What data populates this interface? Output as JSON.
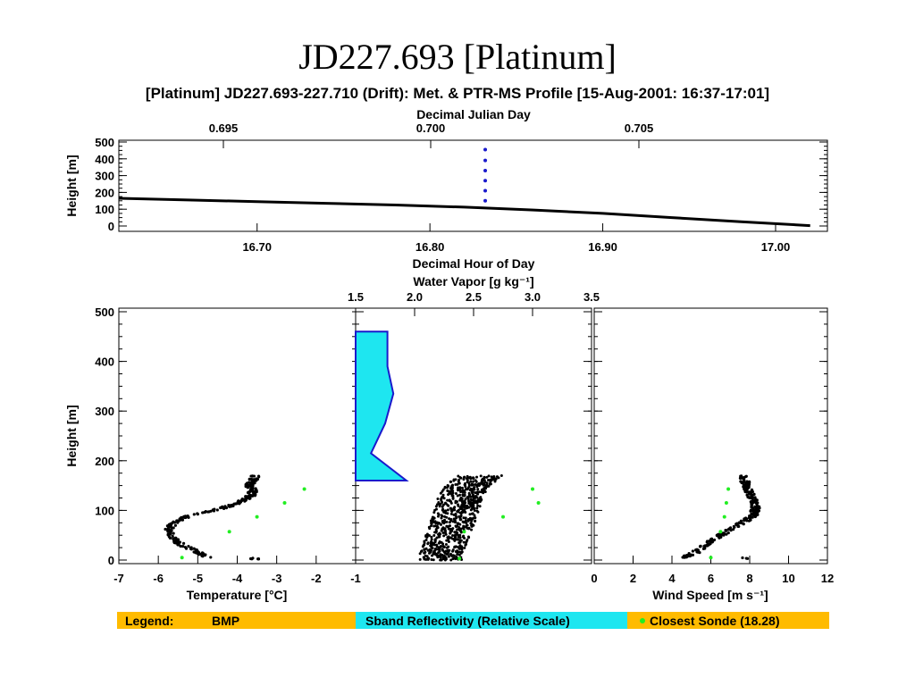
{
  "slide": {
    "title": "JD227.693 [Platinum]",
    "chart_title": "[Platinum] JD227.693-227.710 (Drift): Met. & PTR-MS Profile [15-Aug-2001: 16:37-17:01]"
  },
  "colors": {
    "bmp": "#000000",
    "sonde": "#22ee22",
    "sband_fill": "#1ee6f0",
    "sband_line": "#1a1acc",
    "drift_marker": "#1a1acc",
    "legend_bg": "#ffbb00",
    "legend_sband_bg": "#1ee6f0",
    "legend_sband_text": "#1a1acc"
  },
  "legend": {
    "label": "Legend:",
    "bmp": "BMP",
    "sband": "Sband Reflectivity (Relative Scale)",
    "sonde": "Closest Sonde (18.28)"
  },
  "chart_data": [
    {
      "type": "line",
      "id": "time-height",
      "top_axis_label": "Decimal Julian Day",
      "top_ticks": [
        "0.695",
        "0.700",
        "0.705"
      ],
      "xlabel": "Decimal Hour of Day",
      "x_ticks": [
        "16.70",
        "16.80",
        "16.90",
        "17.00"
      ],
      "xlim": [
        16.62,
        17.03
      ],
      "ylabel": "Height [m]",
      "y_ticks": [
        "0",
        "100",
        "200",
        "300",
        "400",
        "500"
      ],
      "ylim": [
        0,
        500
      ],
      "series": [
        {
          "role": "altitude",
          "x": [
            16.62,
            16.66,
            16.7,
            16.74,
            16.78,
            16.82,
            16.86,
            16.9,
            16.94,
            16.98,
            17.02
          ],
          "y": [
            165,
            155,
            145,
            135,
            125,
            112,
            95,
            75,
            50,
            25,
            2
          ]
        },
        {
          "role": "sband-profile-time",
          "x": [
            16.832,
            16.832,
            16.832,
            16.832,
            16.832,
            16.832
          ],
          "y": [
            150,
            210,
            270,
            330,
            390,
            455
          ]
        }
      ]
    },
    {
      "type": "scatter",
      "id": "temperature-profile",
      "xlabel": "Temperature [°C]",
      "x_ticks": [
        "-7",
        "-6",
        "-5",
        "-4",
        "-3",
        "-2",
        "-1"
      ],
      "xlim": [
        -7,
        -1
      ],
      "ylabel": "Height [m]",
      "y_ticks": [
        "0",
        "100",
        "200",
        "300",
        "400",
        "500"
      ],
      "ylim": [
        0,
        500
      ],
      "bmp_profile": {
        "y": [
          5,
          15,
          30,
          45,
          60,
          75,
          90,
          100,
          110,
          120,
          130,
          140,
          150,
          160,
          170
        ],
        "x": [
          -4.75,
          -4.95,
          -5.4,
          -5.65,
          -5.75,
          -5.6,
          -5.2,
          -4.6,
          -4.15,
          -3.85,
          -3.65,
          -3.6,
          -3.7,
          -3.6,
          -3.55
        ]
      },
      "sonde": {
        "y": [
          5,
          57,
          87,
          115,
          143
        ],
        "x": [
          -5.4,
          -4.2,
          -3.5,
          -2.8,
          -2.3
        ]
      }
    },
    {
      "type": "scatter",
      "id": "water-vapor-profile",
      "top_axis_label": "Water Vapor [g kg⁻¹]",
      "top_ticks": [
        "1.5",
        "2.0",
        "2.5",
        "3.0",
        "3.5"
      ],
      "xlim": [
        1.5,
        3.5
      ],
      "ylim": [
        0,
        500
      ],
      "bmp_profile": {
        "y": [
          0,
          20,
          40,
          60,
          80,
          100,
          120,
          140,
          160,
          170
        ],
        "x": [
          2.22,
          2.24,
          2.27,
          2.3,
          2.33,
          2.36,
          2.38,
          2.42,
          2.5,
          2.55
        ]
      },
      "sonde": {
        "y": [
          3,
          57,
          87,
          115,
          143
        ],
        "x": [
          2.38,
          2.42,
          2.75,
          3.05,
          3.0
        ]
      },
      "sband_relative": {
        "y": [
          160,
          215,
          275,
          335,
          390,
          460
        ],
        "x": [
          1.93,
          1.63,
          1.75,
          1.82,
          1.77,
          1.77
        ]
      }
    },
    {
      "type": "scatter",
      "id": "wind-speed-profile",
      "xlabel": "Wind Speed [m s⁻¹]",
      "x_ticks": [
        "0",
        "2",
        "4",
        "6",
        "8",
        "10",
        "12"
      ],
      "xlim": [
        0,
        12
      ],
      "ylim": [
        0,
        500
      ],
      "bmp_profile": {
        "y": [
          5,
          15,
          30,
          45,
          60,
          75,
          90,
          105,
          120,
          135,
          150,
          170
        ],
        "x": [
          4.6,
          5.2,
          5.7,
          6.3,
          6.9,
          7.6,
          8.2,
          8.3,
          8.2,
          8.0,
          7.8,
          7.7
        ]
      },
      "sonde": {
        "y": [
          5,
          57,
          87,
          115,
          143
        ],
        "x": [
          6.0,
          6.5,
          6.7,
          6.8,
          6.9
        ]
      }
    }
  ]
}
